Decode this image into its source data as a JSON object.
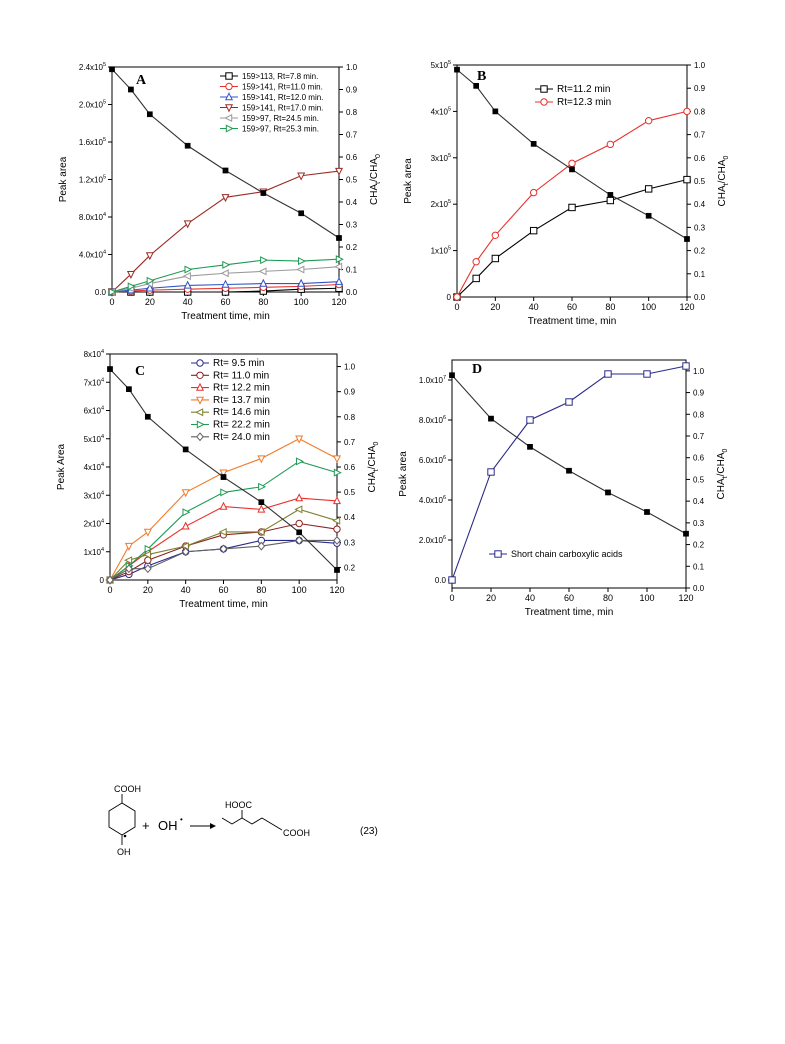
{
  "panels": [
    {
      "letter": "A",
      "xlabel": "Treatment time, min",
      "ylabel": "Peak area",
      "y2label": "CHA_t/CHA_0",
      "xticks": [
        0,
        20,
        40,
        60,
        80,
        100,
        120
      ],
      "yticks": [
        {
          "v": 0,
          "l": "0.0"
        },
        {
          "v": 40000,
          "l": "4.0x10",
          "e": "4"
        },
        {
          "v": 80000,
          "l": "8.0x10",
          "e": "4"
        },
        {
          "v": 120000,
          "l": "1.2x10",
          "e": "5"
        },
        {
          "v": 160000,
          "l": "1.6x10",
          "e": "5"
        },
        {
          "v": 200000,
          "l": "2.0x10",
          "e": "5"
        },
        {
          "v": 240000,
          "l": "2.4x10",
          "e": "5"
        }
      ],
      "y2ticks": [
        "0.0",
        "0.1",
        "0.2",
        "0.3",
        "0.4",
        "0.5",
        "0.6",
        "0.7",
        "0.8",
        "0.9",
        "1.0"
      ],
      "legend": [
        {
          "label": "159>113, Rt=7.8 min.",
          "color": "#000000",
          "marker": "square"
        },
        {
          "label": "159>141, Rt=11.0 min.",
          "color": "#e8302c",
          "marker": "circle"
        },
        {
          "label": "159>141, Rt=12.0 min.",
          "color": "#2f54c8",
          "marker": "triangle-up"
        },
        {
          "label": "159>141, Rt=17.0 min.",
          "color": "#9b2b23",
          "marker": "triangle-down"
        },
        {
          "label": "159>97,  Rt=24.5 min.",
          "color": "#9a9a9a",
          "marker": "triangle-left"
        },
        {
          "label": "159>97,  Rt=25.3 min.",
          "color": "#1f9a55",
          "marker": "triangle-right"
        }
      ]
    },
    {
      "letter": "B",
      "xlabel": "Treatment time, min",
      "ylabel": "Peak area",
      "y2label": "CHA_t/CHA_0",
      "xticks": [
        0,
        20,
        40,
        60,
        80,
        100,
        120
      ],
      "yticks": [
        {
          "v": 0,
          "l": "0"
        },
        {
          "v": 100000,
          "l": "1x10",
          "e": "5"
        },
        {
          "v": 200000,
          "l": "2x10",
          "e": "5"
        },
        {
          "v": 300000,
          "l": "3x10",
          "e": "5"
        },
        {
          "v": 400000,
          "l": "4x10",
          "e": "5"
        },
        {
          "v": 500000,
          "l": "5x10",
          "e": "5"
        }
      ],
      "y2ticks": [
        "0.0",
        "0.1",
        "0.2",
        "0.3",
        "0.4",
        "0.5",
        "0.6",
        "0.7",
        "0.8",
        "0.9",
        "1.0"
      ],
      "legend": [
        {
          "label": "Rt=11.2 min",
          "color": "#000000",
          "marker": "square-open"
        },
        {
          "label": "Rt=12.3 min",
          "color": "#e8302c",
          "marker": "circle"
        }
      ]
    },
    {
      "letter": "C",
      "xlabel": "Treatment time, min",
      "ylabel": "Peak Area",
      "y2label": "CHA_t/CHA_0",
      "xticks": [
        0,
        20,
        40,
        60,
        80,
        100,
        120
      ],
      "yticks": [
        {
          "v": 0,
          "l": "0"
        },
        {
          "v": 10000,
          "l": "1x10",
          "e": "4"
        },
        {
          "v": 20000,
          "l": "2x10",
          "e": "4"
        },
        {
          "v": 30000,
          "l": "3x10",
          "e": "4"
        },
        {
          "v": 40000,
          "l": "4x10",
          "e": "4"
        },
        {
          "v": 50000,
          "l": "5x10",
          "e": "4"
        },
        {
          "v": 60000,
          "l": "6x10",
          "e": "4"
        },
        {
          "v": 70000,
          "l": "7x10",
          "e": "4"
        },
        {
          "v": 80000,
          "l": "8x10",
          "e": "4"
        }
      ],
      "y2ticks": [
        "0.2",
        "0.3",
        "0.4",
        "0.5",
        "0.6",
        "0.7",
        "0.8",
        "0.9",
        "1.0"
      ],
      "legend": [
        {
          "label": "Rt= 9.5 min",
          "color": "#2a2a8a",
          "marker": "circle"
        },
        {
          "label": "Rt= 11.0 min",
          "color": "#8b2323",
          "marker": "circle"
        },
        {
          "label": "Rt= 12.2 min",
          "color": "#e8302c",
          "marker": "triangle-up"
        },
        {
          "label": "Rt= 13.7 min",
          "color": "#f07a2a",
          "marker": "triangle-down"
        },
        {
          "label": "Rt= 14.6 min",
          "color": "#7f7f2f",
          "marker": "triangle-left"
        },
        {
          "label": "Rt= 22.2 min",
          "color": "#1f9a55",
          "marker": "triangle-right"
        },
        {
          "label": "Rt= 24.0 min",
          "color": "#606060",
          "marker": "diamond"
        }
      ]
    },
    {
      "letter": "D",
      "xlabel": "Treatment time, min",
      "ylabel": "Peak area",
      "y2label": "CHA_t/CHA_0",
      "xticks": [
        0,
        20,
        40,
        60,
        80,
        100,
        120
      ],
      "yticks": [
        {
          "v": 0,
          "l": "0.0"
        },
        {
          "v": 2000000,
          "l": "2.0x10",
          "e": "6"
        },
        {
          "v": 4000000,
          "l": "4.0x10",
          "e": "6"
        },
        {
          "v": 6000000,
          "l": "6.0x10",
          "e": "6"
        },
        {
          "v": 8000000,
          "l": "8.0x10",
          "e": "6"
        },
        {
          "v": 10000000,
          "l": "1.0x10",
          "e": "7"
        }
      ],
      "y2ticks": [
        "0.0",
        "0.1",
        "0.2",
        "0.3",
        "0.4",
        "0.5",
        "0.6",
        "0.7",
        "0.8",
        "0.9",
        "1.0"
      ],
      "legend": [
        {
          "label": "Short chain carboxylic acids",
          "color": "#2a2a8a",
          "marker": "square-open"
        }
      ]
    }
  ],
  "chart_data": [
    {
      "type": "line",
      "title": "A",
      "xlabel": "Treatment time, min",
      "ylabel": "Peak area",
      "y2label": "CHA_t/CHA_0",
      "xlim": [
        0,
        120
      ],
      "ylim": [
        0,
        240000
      ],
      "y2lim": [
        0,
        1.0
      ],
      "grid": false,
      "legend_position": "top-right",
      "series": [
        {
          "name": "159>113, Rt=7.8 min.",
          "axis": "y",
          "color": "#000000",
          "marker": "square",
          "x": [
            0,
            10,
            20,
            40,
            60,
            80,
            100,
            120
          ],
          "y": [
            0,
            0,
            0,
            0,
            0,
            1000,
            3000,
            4000
          ]
        },
        {
          "name": "159>141, Rt=11.0 min.",
          "axis": "y",
          "color": "#e8302c",
          "marker": "circle",
          "x": [
            0,
            10,
            20,
            40,
            60,
            80,
            100,
            120
          ],
          "y": [
            0,
            1000,
            2000,
            3000,
            4000,
            5000,
            6000,
            8000
          ]
        },
        {
          "name": "159>141, Rt=12.0 min.",
          "axis": "y",
          "color": "#2f54c8",
          "marker": "triangle-up",
          "x": [
            0,
            10,
            20,
            40,
            60,
            80,
            100,
            120
          ],
          "y": [
            0,
            2000,
            4000,
            7000,
            8000,
            9000,
            9000,
            11000
          ]
        },
        {
          "name": "159>141, Rt=17.0 min.",
          "axis": "y",
          "color": "#9b2b23",
          "marker": "triangle-down",
          "x": [
            0,
            10,
            20,
            40,
            60,
            80,
            100,
            120
          ],
          "y": [
            0,
            19000,
            39000,
            73000,
            101000,
            107000,
            124000,
            129000
          ]
        },
        {
          "name": "159>97,  Rt=24.5 min.",
          "axis": "y",
          "color": "#9a9a9a",
          "marker": "triangle-left",
          "x": [
            0,
            10,
            20,
            40,
            60,
            80,
            100,
            120
          ],
          "y": [
            0,
            4000,
            9000,
            17000,
            20000,
            22000,
            24000,
            27000
          ]
        },
        {
          "name": "159>97,  Rt=25.3 min.",
          "axis": "y",
          "color": "#1f9a55",
          "marker": "triangle-right",
          "x": [
            0,
            10,
            20,
            40,
            60,
            80,
            100,
            120
          ],
          "y": [
            0,
            6000,
            12000,
            24000,
            29000,
            34000,
            33000,
            35000
          ]
        },
        {
          "axis": "y2",
          "color": "#333333",
          "marker": "square-filled",
          "x": [
            0,
            10,
            20,
            40,
            60,
            80,
            100,
            120
          ],
          "y": [
            0.99,
            0.9,
            0.79,
            0.65,
            0.54,
            0.44,
            0.35,
            0.24
          ]
        }
      ]
    },
    {
      "type": "line",
      "title": "B",
      "xlabel": "Treatment time, min",
      "ylabel": "Peak area",
      "y2label": "CHA_t/CHA_0",
      "xlim": [
        0,
        120
      ],
      "ylim": [
        0,
        500000
      ],
      "y2lim": [
        0,
        1.0
      ],
      "grid": false,
      "legend_position": "top-center",
      "series": [
        {
          "name": "Rt=11.2 min",
          "axis": "y",
          "color": "#000000",
          "marker": "square-open",
          "x": [
            0,
            10,
            20,
            40,
            60,
            80,
            100,
            120
          ],
          "y": [
            0,
            40000,
            83000,
            143000,
            193000,
            208000,
            233000,
            253000
          ]
        },
        {
          "name": "Rt=12.3 min",
          "axis": "y",
          "color": "#e8302c",
          "marker": "circle",
          "x": [
            0,
            10,
            20,
            40,
            60,
            80,
            100,
            120
          ],
          "y": [
            0,
            76000,
            133000,
            225000,
            288000,
            329000,
            380000,
            400000
          ]
        },
        {
          "axis": "y2",
          "color": "#333333",
          "marker": "square-filled",
          "x": [
            0,
            10,
            20,
            40,
            60,
            80,
            100,
            120
          ],
          "y": [
            0.98,
            0.91,
            0.8,
            0.66,
            0.55,
            0.44,
            0.35,
            0.25
          ]
        }
      ]
    },
    {
      "type": "line",
      "title": "C",
      "xlabel": "Treatment time, min",
      "ylabel": "Peak Area",
      "y2label": "CHA_t/CHA_0",
      "xlim": [
        0,
        120
      ],
      "ylim": [
        0,
        80000
      ],
      "y2lim": [
        0.15,
        1.05
      ],
      "grid": false,
      "legend_position": "top-center",
      "series": [
        {
          "name": "Rt= 9.5 min",
          "axis": "y",
          "color": "#2a2a8a",
          "marker": "circle",
          "x": [
            0,
            10,
            20,
            40,
            60,
            80,
            100,
            120
          ],
          "y": [
            0,
            2000,
            5000,
            10000,
            11000,
            14000,
            14000,
            13000
          ]
        },
        {
          "name": "Rt= 11.0 min",
          "axis": "y",
          "color": "#8b2323",
          "marker": "circle",
          "x": [
            0,
            10,
            20,
            40,
            60,
            80,
            100,
            120
          ],
          "y": [
            0,
            3000,
            7000,
            12000,
            16000,
            17000,
            20000,
            18000
          ]
        },
        {
          "name": "Rt= 12.2 min",
          "axis": "y",
          "color": "#e8302c",
          "marker": "triangle-up",
          "x": [
            0,
            10,
            20,
            40,
            60,
            80,
            100,
            120
          ],
          "y": [
            0,
            5000,
            10000,
            19000,
            26000,
            25000,
            29000,
            28000
          ]
        },
        {
          "name": "Rt= 13.7 min",
          "axis": "y",
          "color": "#f07a2a",
          "marker": "triangle-down",
          "x": [
            0,
            10,
            20,
            40,
            60,
            80,
            100,
            120
          ],
          "y": [
            0,
            12000,
            17000,
            31000,
            38000,
            43000,
            50000,
            43000
          ]
        },
        {
          "name": "Rt= 14.6 min",
          "axis": "y",
          "color": "#7f7f2f",
          "marker": "triangle-left",
          "x": [
            0,
            10,
            20,
            40,
            60,
            80,
            100,
            120
          ],
          "y": [
            0,
            7000,
            9000,
            12000,
            17000,
            17000,
            25000,
            21000
          ]
        },
        {
          "name": "Rt= 22.2 min",
          "axis": "y",
          "color": "#1f9a55",
          "marker": "triangle-right",
          "x": [
            0,
            10,
            20,
            40,
            60,
            80,
            100,
            120
          ],
          "y": [
            0,
            5000,
            11000,
            24000,
            31000,
            33000,
            42000,
            38000
          ]
        },
        {
          "name": "Rt= 24.0 min",
          "axis": "y",
          "color": "#606060",
          "marker": "diamond",
          "x": [
            0,
            10,
            20,
            40,
            60,
            80,
            100,
            120
          ],
          "y": [
            0,
            4000,
            4000,
            10000,
            11000,
            12000,
            14000,
            14000
          ]
        },
        {
          "axis": "y2",
          "color": "#333333",
          "marker": "square-filled",
          "x": [
            0,
            10,
            20,
            40,
            60,
            80,
            100,
            120
          ],
          "y": [
            0.99,
            0.91,
            0.8,
            0.67,
            0.56,
            0.46,
            0.34,
            0.19
          ]
        }
      ]
    },
    {
      "type": "line",
      "title": "D",
      "xlabel": "Treatment time, min",
      "ylabel": "Peak area",
      "y2label": "CHA_t/CHA_0",
      "xlim": [
        0,
        120
      ],
      "ylim": [
        -400000,
        11000000
      ],
      "y2lim": [
        0,
        1.05
      ],
      "grid": false,
      "legend_position": "bottom-center",
      "series": [
        {
          "name": "Short chain carboxylic acids",
          "axis": "y",
          "color": "#2a2a8a",
          "marker": "square-open",
          "x": [
            0,
            20,
            40,
            60,
            80,
            100,
            120
          ],
          "y": [
            0,
            5400000,
            8000000,
            8900000,
            10300000,
            10300000,
            10700000
          ]
        },
        {
          "axis": "y2",
          "color": "#333333",
          "marker": "square-filled",
          "x": [
            0,
            20,
            40,
            60,
            80,
            100,
            120
          ],
          "y": [
            0.98,
            0.78,
            0.65,
            0.54,
            0.44,
            0.35,
            0.25
          ]
        }
      ]
    }
  ],
  "equation": {
    "reactant_top": "COOH",
    "reactant_bottom": "OH",
    "plus": "+",
    "radical": "OH",
    "radical_dot": "•",
    "product_left": "HOOC",
    "product_right": "COOH",
    "number": "(23)"
  }
}
